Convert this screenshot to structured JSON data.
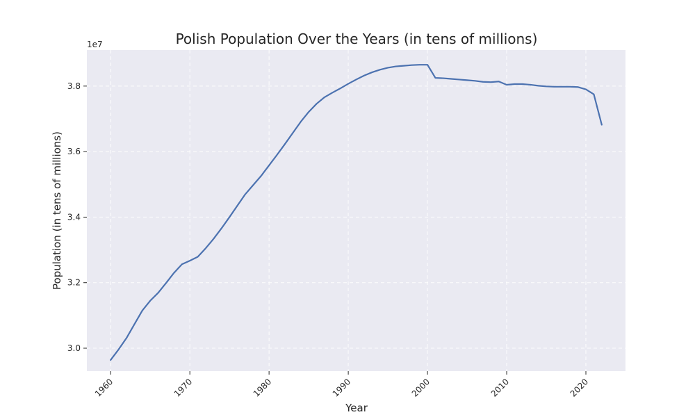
{
  "chart_data": {
    "type": "line",
    "title": "Polish Population Over the Years (in tens of millions)",
    "xlabel": "Year",
    "ylabel": "Population (in tens of millions)",
    "y_offset_label": "1e7",
    "xlim": [
      1957,
      2025
    ],
    "ylim": [
      29300000,
      39100000
    ],
    "grid": true,
    "x_ticks": [
      1960,
      1970,
      1980,
      1990,
      2000,
      2010,
      2020
    ],
    "y_ticks": [
      30000000,
      32000000,
      34000000,
      36000000,
      38000000
    ],
    "y_tick_labels": [
      "3.0",
      "3.2",
      "3.4",
      "3.6",
      "3.8"
    ],
    "colors": {
      "line": "#4c72b0",
      "plot_bg": "#eaeaf2",
      "page_bg": "#ffffff"
    },
    "series": [
      {
        "x": [
          1960,
          1961,
          1962,
          1963,
          1964,
          1965,
          1966,
          1967,
          1968,
          1969,
          1970,
          1971,
          1972,
          1973,
          1974,
          1975,
          1976,
          1977,
          1978,
          1979,
          1980,
          1981,
          1982,
          1983,
          1984,
          1985,
          1986,
          1987,
          1988,
          1989,
          1990,
          1991,
          1992,
          1993,
          1994,
          1995,
          1996,
          1997,
          1998,
          1999,
          2000,
          2001,
          2002,
          2003,
          2004,
          2005,
          2006,
          2007,
          2008,
          2009,
          2010,
          2011,
          2012,
          2013,
          2014,
          2015,
          2016,
          2017,
          2018,
          2019,
          2020,
          2021,
          2022
        ],
        "y": [
          29640000,
          29960000,
          30310000,
          30730000,
          31150000,
          31450000,
          31690000,
          31990000,
          32300000,
          32560000,
          32670000,
          32790000,
          33050000,
          33340000,
          33660000,
          34000000,
          34350000,
          34700000,
          34980000,
          35260000,
          35580000,
          35900000,
          36230000,
          36570000,
          36910000,
          37210000,
          37460000,
          37660000,
          37800000,
          37930000,
          38070000,
          38200000,
          38320000,
          38420000,
          38500000,
          38560000,
          38600000,
          38620000,
          38640000,
          38650000,
          38650000,
          38250000,
          38240000,
          38220000,
          38200000,
          38180000,
          38160000,
          38130000,
          38120000,
          38140000,
          38040000,
          38060000,
          38060000,
          38040000,
          38010000,
          37990000,
          37980000,
          37980000,
          37980000,
          37970000,
          37900000,
          37750000,
          36820000
        ]
      }
    ]
  }
}
